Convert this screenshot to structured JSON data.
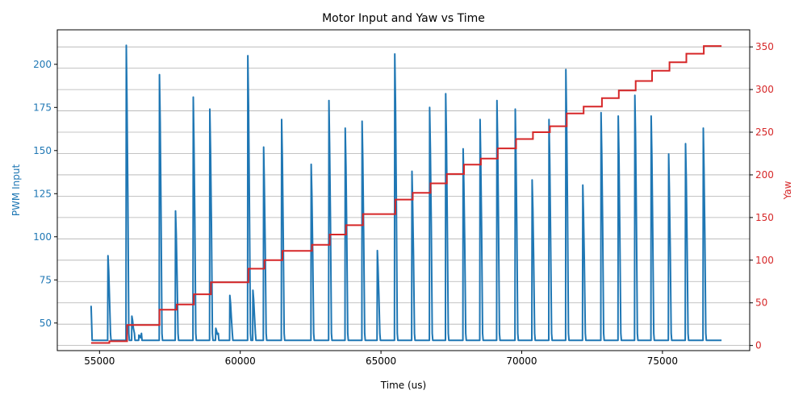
{
  "chart_data": {
    "type": "line",
    "title": "Motor Input and Yaw vs Time",
    "xlabel": "Time (us)",
    "ylabel_left": "PWM Input",
    "ylabel_right": "Yaw",
    "xlim": [
      53500,
      78100
    ],
    "ylim_left": [
      34,
      220
    ],
    "ylim_right": [
      -6,
      370
    ],
    "x_ticks": [
      55000,
      60000,
      65000,
      70000,
      75000
    ],
    "y_left_ticks": [
      50,
      75,
      100,
      125,
      150,
      175,
      200
    ],
    "y_right_ticks": [
      0,
      50,
      100,
      150,
      200,
      250,
      300,
      350
    ],
    "grid": "horizontal gridlines on right (Yaw) axis",
    "colors": {
      "pwm": "#1f77b4",
      "yaw": "#d62728",
      "grid": "#b0b0b0",
      "axis": "#000000"
    },
    "series": [
      {
        "name": "PWM Input",
        "axis": "left",
        "baseline": 40,
        "x_start": 54700,
        "x_end": 77100,
        "initial_value": 60,
        "pulses": [
          [
            55300,
            89
          ],
          [
            55950,
            211
          ],
          [
            56150,
            54
          ],
          [
            56400,
            43
          ],
          [
            57130,
            194
          ],
          [
            57700,
            115
          ],
          [
            58330,
            181
          ],
          [
            58920,
            174
          ],
          [
            59130,
            47
          ],
          [
            59630,
            66
          ],
          [
            60270,
            205
          ],
          [
            60450,
            69
          ],
          [
            60830,
            152
          ],
          [
            61470,
            168
          ],
          [
            62520,
            142
          ],
          [
            63150,
            179
          ],
          [
            63730,
            163
          ],
          [
            64330,
            167
          ],
          [
            64870,
            92
          ],
          [
            65490,
            206
          ],
          [
            66100,
            138
          ],
          [
            66730,
            175
          ],
          [
            67300,
            183
          ],
          [
            67920,
            151
          ],
          [
            68520,
            168
          ],
          [
            69120,
            179
          ],
          [
            69770,
            174
          ],
          [
            70370,
            133
          ],
          [
            70970,
            168
          ],
          [
            71570,
            197
          ],
          [
            72170,
            130
          ],
          [
            72820,
            172
          ],
          [
            73430,
            170
          ],
          [
            74020,
            182
          ],
          [
            74600,
            170
          ],
          [
            75220,
            148
          ],
          [
            75820,
            154
          ],
          [
            76450,
            163
          ]
        ]
      },
      {
        "name": "Yaw",
        "axis": "right",
        "steps": [
          [
            54700,
            3
          ],
          [
            55350,
            5
          ],
          [
            55980,
            24
          ],
          [
            57130,
            42
          ],
          [
            57740,
            48
          ],
          [
            58350,
            60
          ],
          [
            58960,
            74
          ],
          [
            60290,
            90
          ],
          [
            60860,
            100
          ],
          [
            61500,
            111
          ],
          [
            62550,
            118
          ],
          [
            63180,
            130
          ],
          [
            63760,
            141
          ],
          [
            64360,
            154
          ],
          [
            65510,
            171
          ],
          [
            66130,
            179
          ],
          [
            66760,
            190
          ],
          [
            67340,
            201
          ],
          [
            67950,
            212
          ],
          [
            68550,
            219
          ],
          [
            69150,
            231
          ],
          [
            69800,
            242
          ],
          [
            70400,
            250
          ],
          [
            71000,
            257
          ],
          [
            71600,
            272
          ],
          [
            72200,
            280
          ],
          [
            72850,
            290
          ],
          [
            73450,
            299
          ],
          [
            74050,
            310
          ],
          [
            74630,
            322
          ],
          [
            75250,
            332
          ],
          [
            75850,
            342
          ],
          [
            76470,
            351
          ],
          [
            77100,
            351
          ]
        ]
      }
    ]
  }
}
